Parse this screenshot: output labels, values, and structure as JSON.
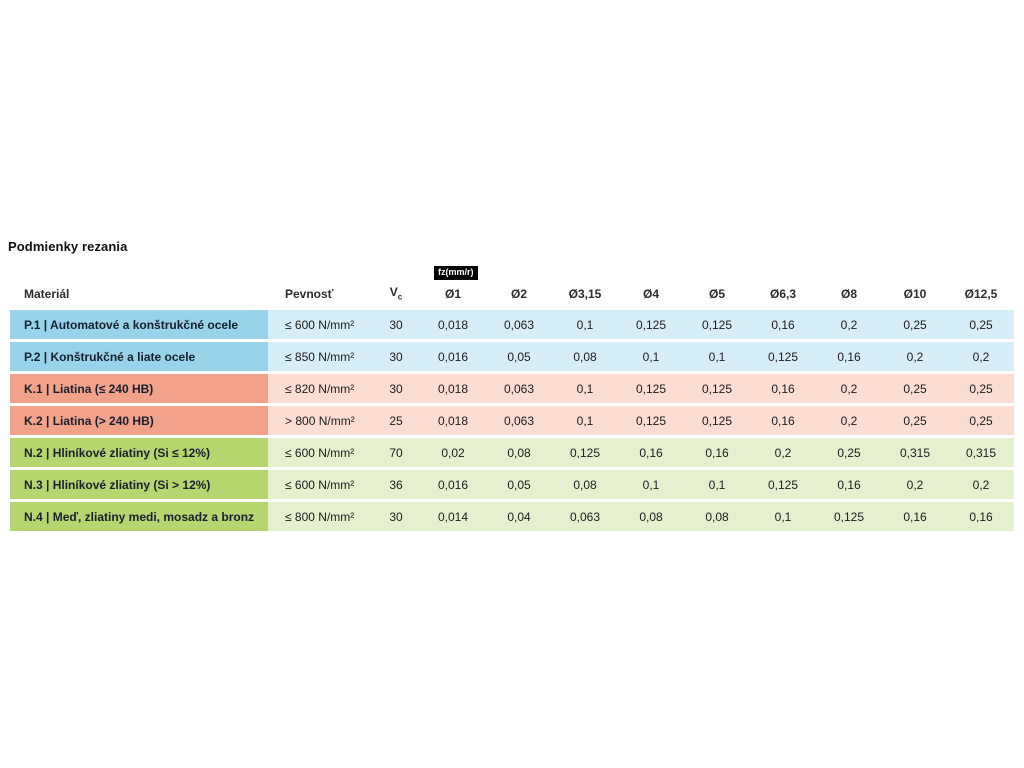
{
  "page": {
    "title": "Podmienky rezania"
  },
  "table": {
    "headers": {
      "material": "Materiál",
      "strength": "Pevnosť",
      "vc_main": "V",
      "vc_sub": "c",
      "fz_badge": "fz(mm/r)",
      "diameters": [
        "Ø1",
        "Ø2",
        "Ø3,15",
        "Ø4",
        "Ø5",
        "Ø6,3",
        "Ø8",
        "Ø10",
        "Ø12,5"
      ]
    },
    "colors": {
      "blue": {
        "label": "#98D3EA",
        "row": "#D7EDF7"
      },
      "salmon": {
        "label": "#F2A18A",
        "row": "#FBDDD3"
      },
      "green": {
        "label": "#B5D66E",
        "row": "#E5F0CE"
      }
    },
    "rows": [
      {
        "group": "blue",
        "material": "P.1 | Automatové a konštrukčné ocele",
        "strength": "≤ 600 N/mm²",
        "vc": "30",
        "values": [
          "0,018",
          "0,063",
          "0,1",
          "0,125",
          "0,125",
          "0,16",
          "0,2",
          "0,25",
          "0,25"
        ]
      },
      {
        "group": "blue",
        "material": "P.2 | Konštrukčné a liate ocele",
        "strength": "≤ 850 N/mm²",
        "vc": "30",
        "values": [
          "0,016",
          "0,05",
          "0,08",
          "0,1",
          "0,1",
          "0,125",
          "0,16",
          "0,2",
          "0,2"
        ]
      },
      {
        "group": "salmon",
        "material": "K.1 | Liatina (≤ 240 HB)",
        "strength": "≤ 820 N/mm²",
        "vc": "30",
        "values": [
          "0,018",
          "0,063",
          "0,1",
          "0,125",
          "0,125",
          "0,16",
          "0,2",
          "0,25",
          "0,25"
        ]
      },
      {
        "group": "salmon",
        "material": "K.2 | Liatina (> 240 HB)",
        "strength": "> 800 N/mm²",
        "vc": "25",
        "values": [
          "0,018",
          "0,063",
          "0,1",
          "0,125",
          "0,125",
          "0,16",
          "0,2",
          "0,25",
          "0,25"
        ]
      },
      {
        "group": "green",
        "material": "N.2 | Hliníkové zliatiny (Si ≤ 12%)",
        "strength": "≤ 600 N/mm²",
        "vc": "70",
        "values": [
          "0,02",
          "0,08",
          "0,125",
          "0,16",
          "0,16",
          "0,2",
          "0,25",
          "0,315",
          "0,315"
        ]
      },
      {
        "group": "green",
        "material": "N.3 | Hliníkové zliatiny (Si > 12%)",
        "strength": "≤ 600 N/mm²",
        "vc": "36",
        "values": [
          "0,016",
          "0,05",
          "0,08",
          "0,1",
          "0,1",
          "0,125",
          "0,16",
          "0,2",
          "0,2"
        ]
      },
      {
        "group": "green",
        "material": "N.4 | Meď, zliatiny medi, mosadz a bronz",
        "strength": "≤ 800 N/mm²",
        "vc": "30",
        "values": [
          "0,014",
          "0,04",
          "0,063",
          "0,08",
          "0,08",
          "0,1",
          "0,125",
          "0,16",
          "0,16"
        ]
      }
    ]
  }
}
